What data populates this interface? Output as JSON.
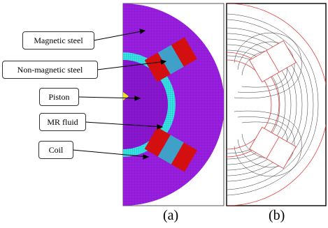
{
  "labels": {
    "magnetic_steel": "Magnetic steel",
    "non_magnetic_steel": "Non-magnetic steel",
    "piston": "Piston",
    "mr_fluid": "MR fluid",
    "coil": "Coil"
  },
  "captions": {
    "a": "(a)",
    "b": "(b)"
  },
  "colors": {
    "magnetic_steel": "#9a1ee0",
    "non_magnetic_steel": "#3fa0c8",
    "mr_fluid": "#38e6e6",
    "coil": "#d40f0f",
    "flux_line": "#333333",
    "boundary": "#e04040"
  }
}
